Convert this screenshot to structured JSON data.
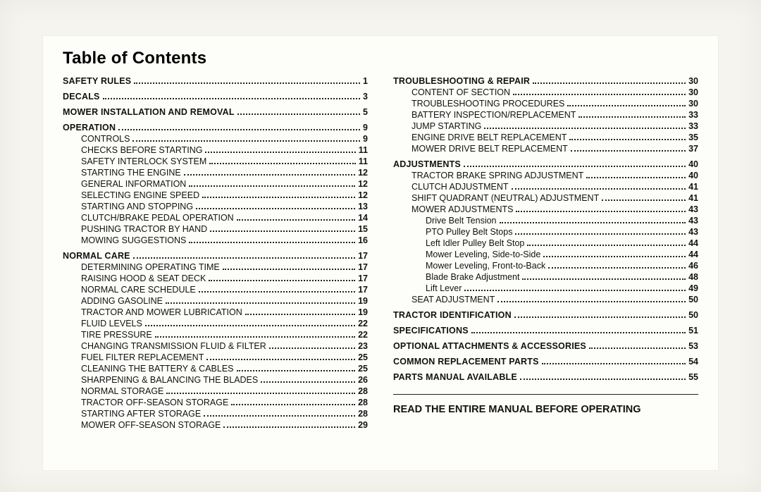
{
  "title": "Table of Contents",
  "left": [
    {
      "label": "SAFETY RULES",
      "page": "1",
      "class": "bold",
      "gap": false
    },
    {
      "label": "DECALS",
      "page": "3",
      "class": "bold",
      "gap": true
    },
    {
      "label": "MOWER INSTALLATION AND REMOVAL",
      "page": "5",
      "class": "bold",
      "gap": true
    },
    {
      "label": "OPERATION",
      "page": "9",
      "class": "bold",
      "gap": true
    },
    {
      "label": "CONTROLS",
      "page": "9",
      "class": "ind1"
    },
    {
      "label": "CHECKS BEFORE STARTING",
      "page": "11",
      "class": "ind1"
    },
    {
      "label": "SAFETY INTERLOCK SYSTEM",
      "page": "11",
      "class": "ind1"
    },
    {
      "label": "STARTING THE ENGINE",
      "page": "12",
      "class": "ind1"
    },
    {
      "label": "GENERAL INFORMATION",
      "page": "12",
      "class": "ind1"
    },
    {
      "label": "SELECTING ENGINE SPEED",
      "page": "12",
      "class": "ind1"
    },
    {
      "label": "STARTING AND STOPPING",
      "page": "13",
      "class": "ind1"
    },
    {
      "label": "CLUTCH/BRAKE PEDAL OPERATION",
      "page": "14",
      "class": "ind1"
    },
    {
      "label": "PUSHING TRACTOR BY HAND",
      "page": "15",
      "class": "ind1"
    },
    {
      "label": "MOWING SUGGESTIONS",
      "page": "16",
      "class": "ind1"
    },
    {
      "label": "NORMAL CARE",
      "page": "17",
      "class": "bold",
      "gap": true
    },
    {
      "label": "DETERMINING OPERATING TIME",
      "page": "17",
      "class": "ind1"
    },
    {
      "label": "RAISING HOOD & SEAT DECK",
      "page": "17",
      "class": "ind1"
    },
    {
      "label": "NORMAL CARE SCHEDULE",
      "page": "17",
      "class": "ind1"
    },
    {
      "label": "ADDING GASOLINE",
      "page": "19",
      "class": "ind1"
    },
    {
      "label": "TRACTOR AND MOWER LUBRICATION",
      "page": "19",
      "class": "ind1"
    },
    {
      "label": "FLUID LEVELS",
      "page": "22",
      "class": "ind1"
    },
    {
      "label": "TIRE PRESSURE",
      "page": "22",
      "class": "ind1"
    },
    {
      "label": "CHANGING TRANSMISSION FLUID & FILTER",
      "page": "23",
      "class": "ind1"
    },
    {
      "label": "FUEL FILTER REPLACEMENT",
      "page": "25",
      "class": "ind1"
    },
    {
      "label": "CLEANING THE BATTERY & CABLES",
      "page": "25",
      "class": "ind1"
    },
    {
      "label": "SHARPENING & BALANCING THE BLADES",
      "page": "26",
      "class": "ind1"
    },
    {
      "label": "NORMAL STORAGE",
      "page": "28",
      "class": "ind1"
    },
    {
      "label": "TRACTOR OFF-SEASON STORAGE",
      "page": "28",
      "class": "ind1"
    },
    {
      "label": "STARTING AFTER STORAGE",
      "page": "28",
      "class": "ind1"
    },
    {
      "label": "MOWER OFF-SEASON STORAGE",
      "page": "29",
      "class": "ind1"
    }
  ],
  "right": [
    {
      "label": "TROUBLESHOOTING & REPAIR",
      "page": "30",
      "class": "bold"
    },
    {
      "label": "CONTENT OF SECTION",
      "page": "30",
      "class": "ind1"
    },
    {
      "label": "TROUBLESHOOTING PROCEDURES",
      "page": "30",
      "class": "ind1"
    },
    {
      "label": "BATTERY INSPECTION/REPLACEMENT",
      "page": "33",
      "class": "ind1"
    },
    {
      "label": "JUMP STARTING",
      "page": "33",
      "class": "ind1"
    },
    {
      "label": "ENGINE DRIVE BELT REPLACEMENT",
      "page": "35",
      "class": "ind1"
    },
    {
      "label": "MOWER DRIVE BELT REPLACEMENT",
      "page": "37",
      "class": "ind1"
    },
    {
      "label": "ADJUSTMENTS",
      "page": "40",
      "class": "bold",
      "gap": true
    },
    {
      "label": "TRACTOR BRAKE SPRING ADJUSTMENT",
      "page": "40",
      "class": "ind1"
    },
    {
      "label": "CLUTCH ADJUSTMENT",
      "page": "41",
      "class": "ind1"
    },
    {
      "label": "SHIFT QUADRANT (NEUTRAL) ADJUSTMENT",
      "page": "41",
      "class": "ind1"
    },
    {
      "label": "MOWER ADJUSTMENTS",
      "page": "43",
      "class": "ind1"
    },
    {
      "label": "Drive Belt Tension",
      "page": "43",
      "class": "ind2"
    },
    {
      "label": "PTO Pulley Belt Stops",
      "page": "43",
      "class": "ind2"
    },
    {
      "label": "Left Idler Pulley Belt Stop",
      "page": "44",
      "class": "ind2"
    },
    {
      "label": "Mower Leveling, Side-to-Side",
      "page": "44",
      "class": "ind2"
    },
    {
      "label": "Mower Leveling, Front-to-Back",
      "page": "46",
      "class": "ind2"
    },
    {
      "label": "Blade Brake Adjustment",
      "page": "48",
      "class": "ind2"
    },
    {
      "label": "Lift Lever",
      "page": "49",
      "class": "ind2"
    },
    {
      "label": "SEAT ADJUSTMENT",
      "page": "50",
      "class": "ind1"
    },
    {
      "label": "TRACTOR IDENTIFICATION",
      "page": "50",
      "class": "bold",
      "gap": true
    },
    {
      "label": "SPECIFICATIONS",
      "page": "51",
      "class": "bold",
      "gap": true
    },
    {
      "label": "OPTIONAL ATTACHMENTS & ACCESSORIES",
      "page": "53",
      "class": "bold",
      "gap": true
    },
    {
      "label": "COMMON REPLACEMENT PARTS",
      "page": "54",
      "class": "bold",
      "gap": true
    },
    {
      "label": "PARTS MANUAL AVAILABLE",
      "page": "55",
      "class": "bold",
      "gap": true
    }
  ],
  "footer": "READ THE ENTIRE MANUAL BEFORE OPERATING"
}
